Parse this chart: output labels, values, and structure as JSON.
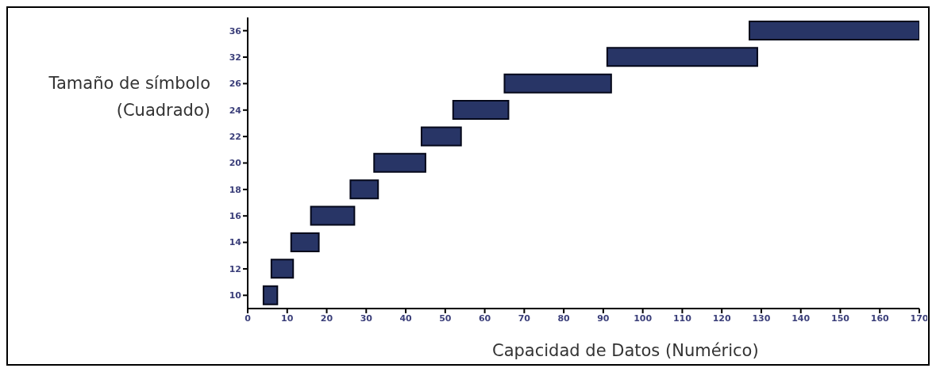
{
  "chart_data": {
    "type": "bar",
    "orientation": "horizontal",
    "xlabel": "Capacidad de Datos (Numérico)",
    "ylabel": "Tamaño de símbolo (Cuadrado)",
    "categories": [
      "36",
      "32",
      "26",
      "24",
      "22",
      "20",
      "18",
      "16",
      "14",
      "12",
      "10"
    ],
    "base": [
      127,
      91,
      65,
      52,
      44,
      32,
      26,
      16,
      11,
      6,
      4
    ],
    "values": [
      43,
      38,
      27,
      14,
      10,
      13,
      7,
      11,
      7,
      5.5,
      3.5
    ],
    "color": "#283566",
    "xlim": [
      0,
      170
    ],
    "xticks": [
      0,
      10,
      20,
      30,
      40,
      50,
      60,
      70,
      80,
      90,
      100,
      110,
      120,
      130,
      140,
      150,
      160,
      170
    ],
    "grid": false,
    "legend": false
  }
}
